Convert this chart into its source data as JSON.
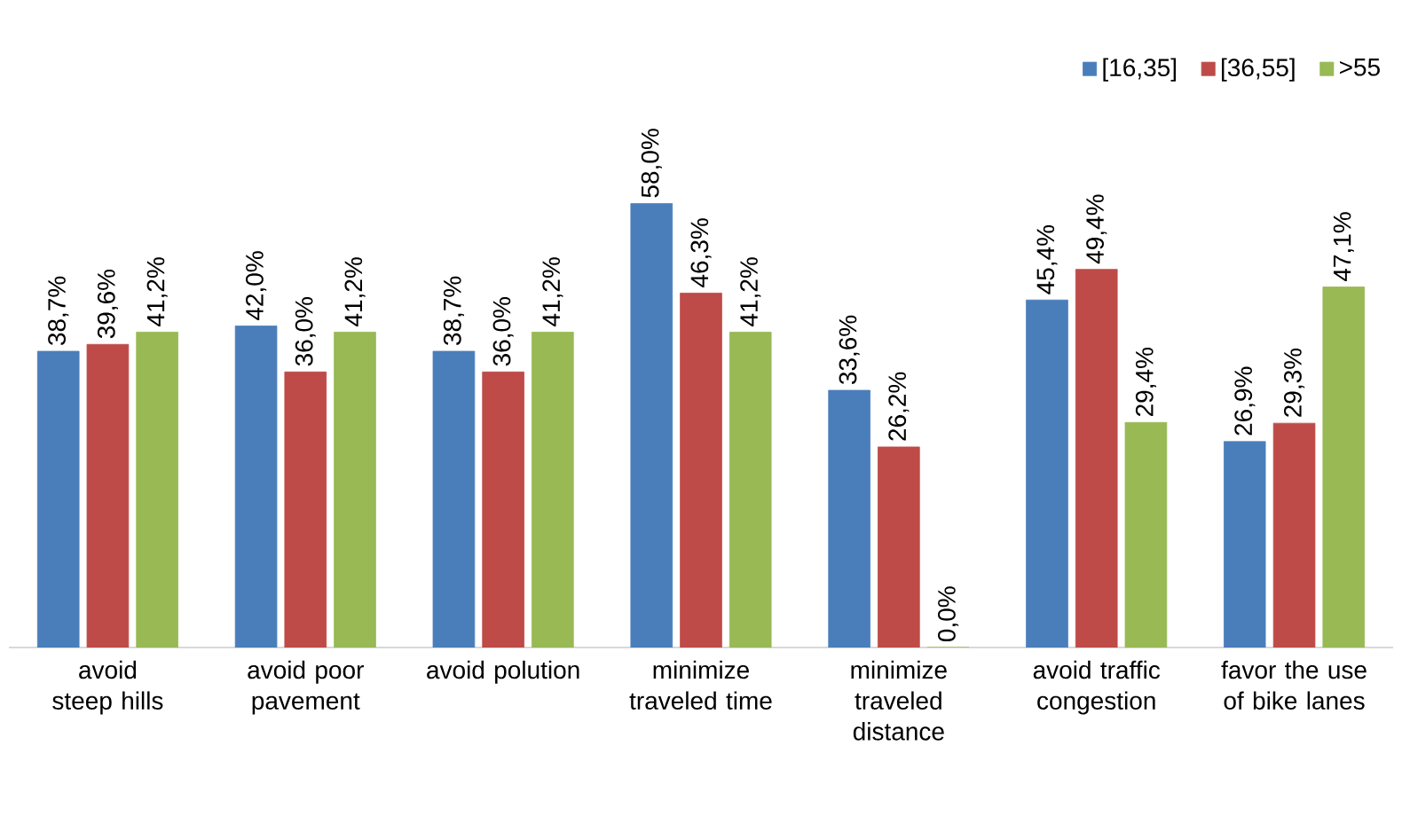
{
  "chart_data": {
    "type": "bar",
    "categories": [
      "avoid steep hills",
      "avoid poor pavement",
      "avoid polution",
      "minimize traveled time",
      "minimize traveled distance",
      "avoid traffic congestion",
      "favor the use of bike lanes"
    ],
    "series": [
      {
        "name": "[16,35]",
        "color": "#4a7ebb",
        "values": [
          38.7,
          42.0,
          38.7,
          58.0,
          33.6,
          45.4,
          26.9
        ],
        "value_labels": [
          "38,7%",
          "42,0%",
          "38,7%",
          "58,0%",
          "33,6%",
          "45,4%",
          "26,9%"
        ]
      },
      {
        "name": "[36,55]",
        "color": "#be4b48",
        "values": [
          39.6,
          36.0,
          36.0,
          46.3,
          26.2,
          49.4,
          29.3
        ],
        "value_labels": [
          "39,6%",
          "36,0%",
          "36,0%",
          "46,3%",
          "26,2%",
          "49,4%",
          "29,3%"
        ]
      },
      {
        "name": ">55",
        "color": "#98b954",
        "values": [
          41.2,
          41.2,
          41.2,
          41.2,
          0.0,
          29.4,
          47.1
        ],
        "value_labels": [
          "41,2%",
          "41,2%",
          "41,2%",
          "41,2%",
          "0,0%",
          "29,4%",
          "47,1%"
        ]
      }
    ],
    "legend": "top right"
  }
}
